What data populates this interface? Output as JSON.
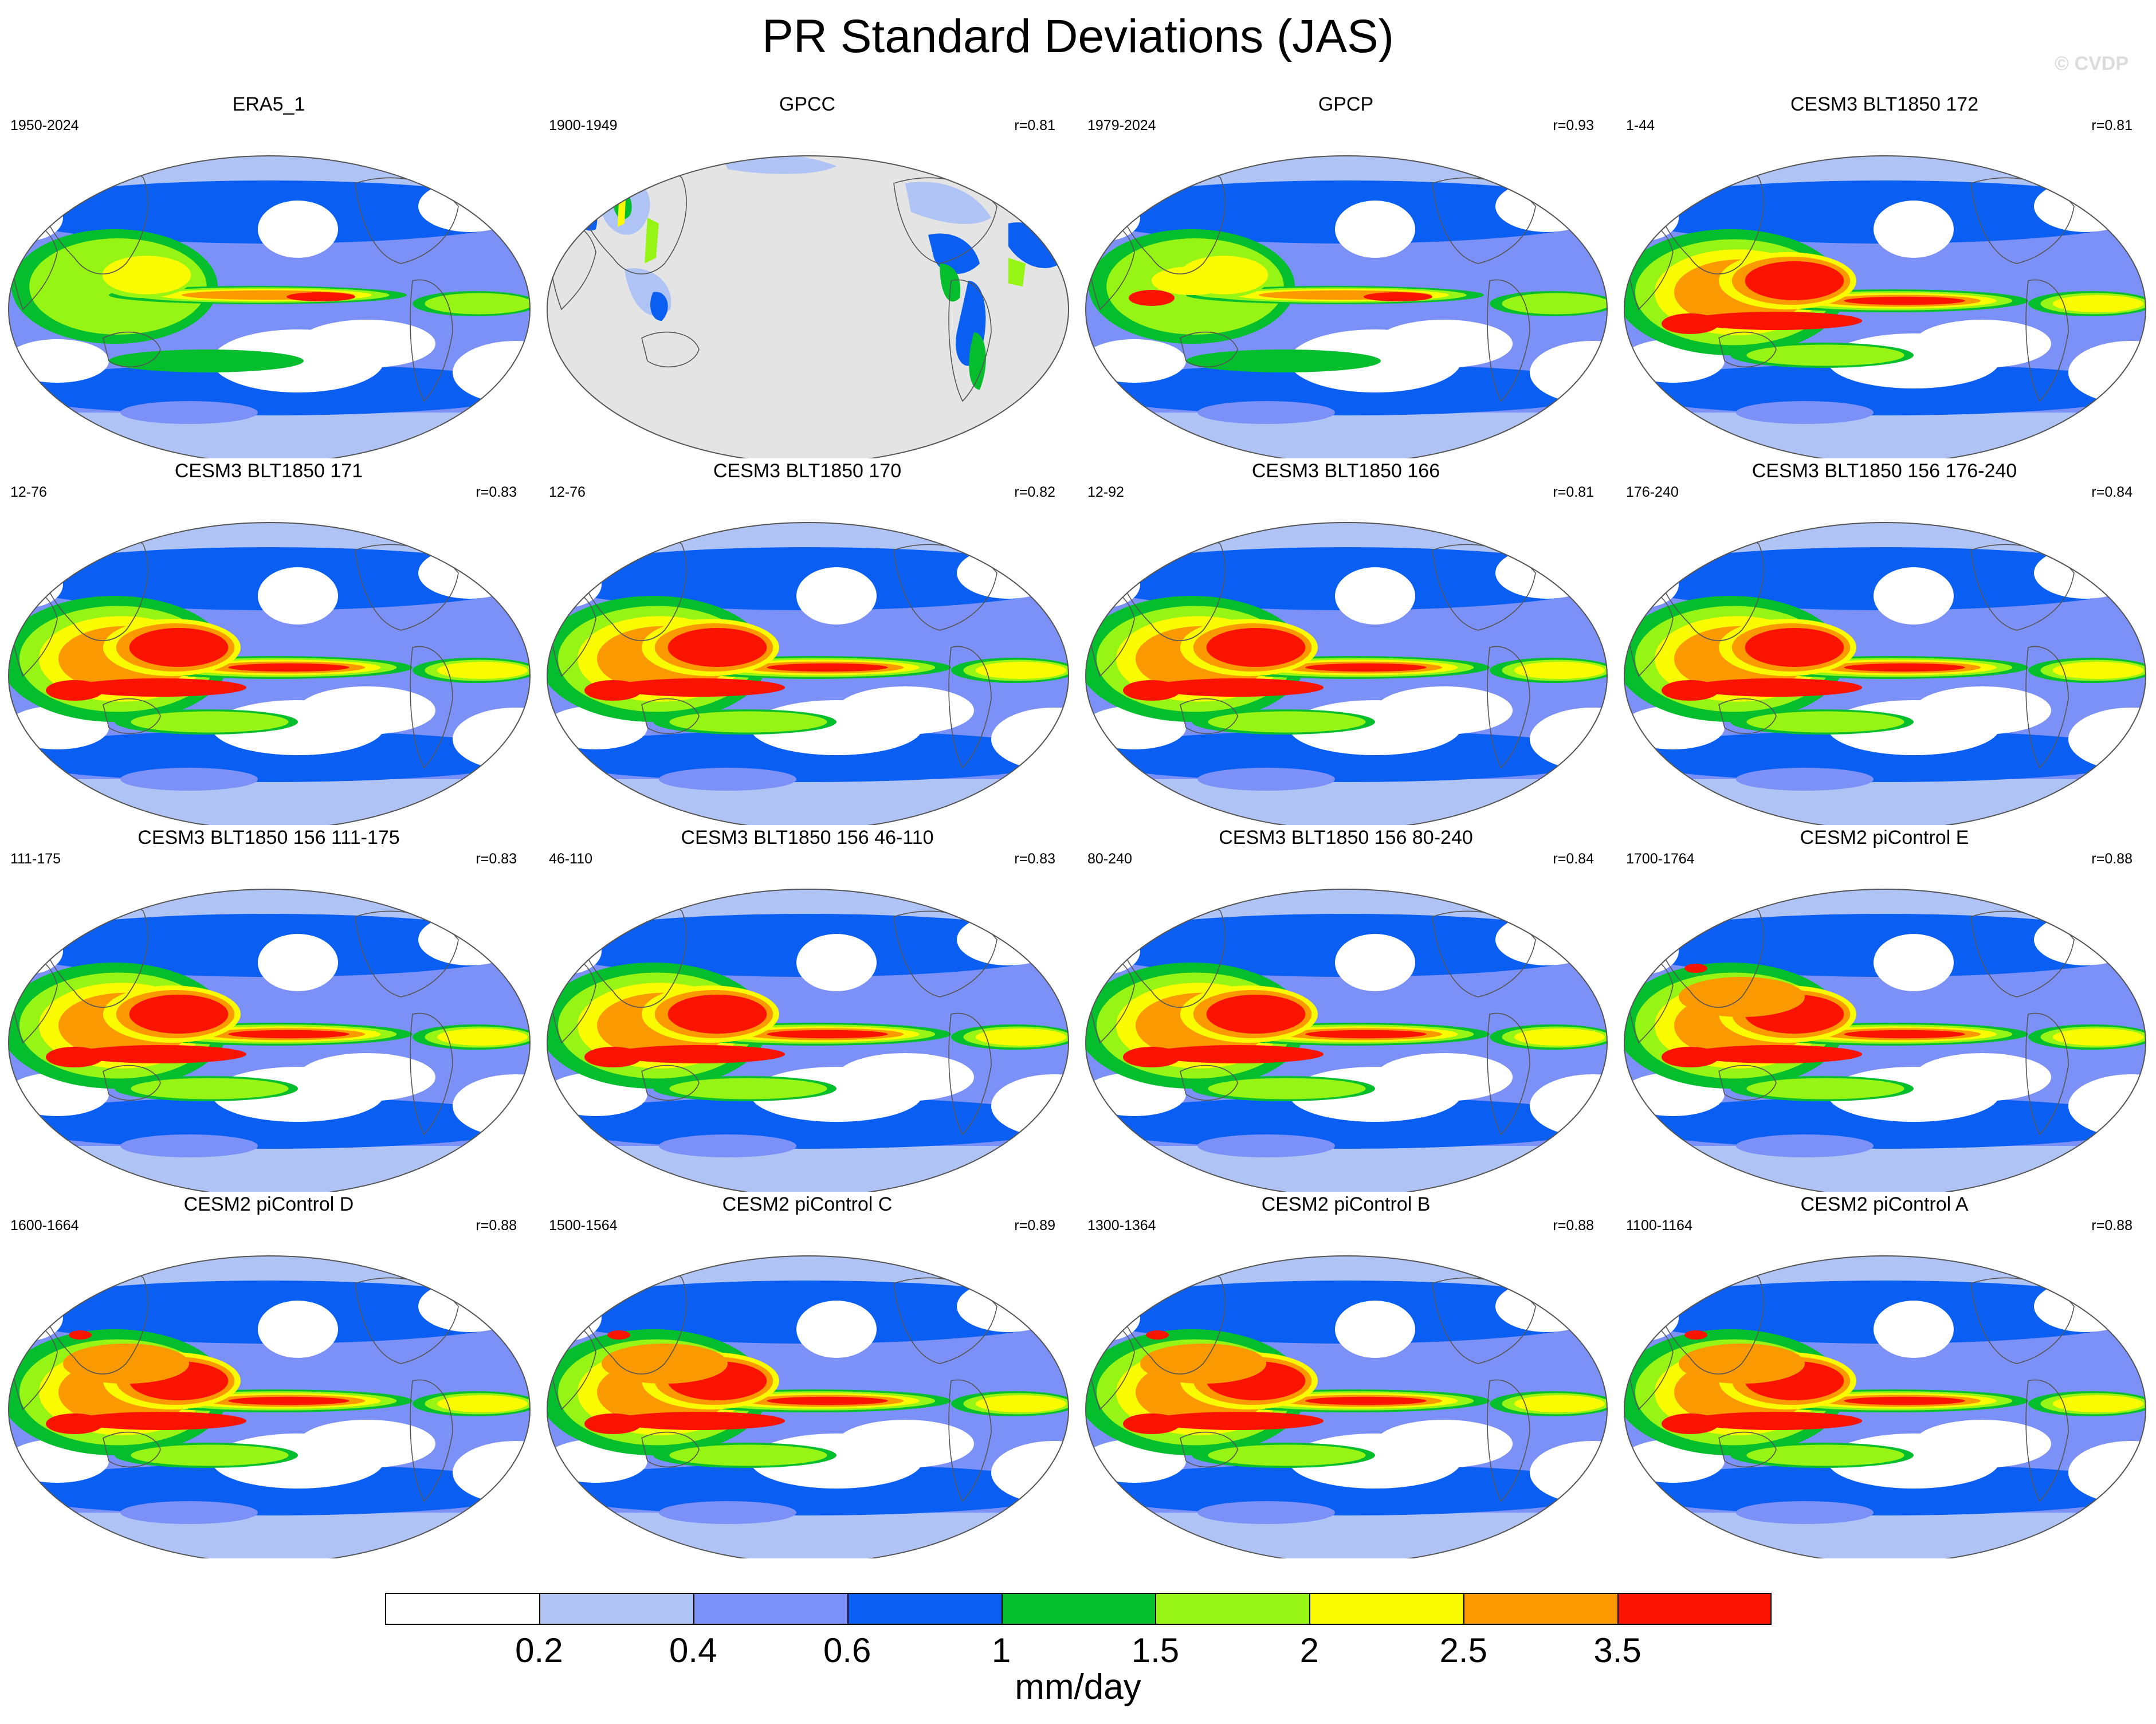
{
  "title": "PR Standard Deviations (JAS)",
  "watermark": "© CVDP",
  "units": "mm/day",
  "colorbar": {
    "colors": [
      "#ffffff",
      "#afc3f5",
      "#7c91f7",
      "#0a5ff2",
      "#05be2d",
      "#96f514",
      "#fafa00",
      "#fa9900",
      "#fa1400"
    ],
    "tick_labels": [
      "0.2",
      "0.4",
      "0.6",
      "1",
      "1.5",
      "2",
      "2.5",
      "3.5"
    ]
  },
  "map_style": {
    "ocean_bg": "#ffffff",
    "missing_bg": "#e4e4e4",
    "coast": "#555555"
  },
  "panels": [
    {
      "title": "ERA5_1",
      "years": "1950-2024",
      "r": "",
      "variant": "obs"
    },
    {
      "title": "GPCC",
      "years": "1900-1949",
      "r": "r=0.81",
      "variant": "gpcc"
    },
    {
      "title": "GPCP",
      "years": "1979-2024",
      "r": "r=0.93",
      "variant": "obs2"
    },
    {
      "title": "CESM3 BLT1850 172",
      "years": "1-44",
      "r": "r=0.81",
      "variant": "model"
    },
    {
      "title": "CESM3 BLT1850 171",
      "years": "12-76",
      "r": "r=0.83",
      "variant": "model"
    },
    {
      "title": "CESM3 BLT1850 170",
      "years": "12-76",
      "r": "r=0.82",
      "variant": "model"
    },
    {
      "title": "CESM3 BLT1850 166",
      "years": "12-92",
      "r": "r=0.81",
      "variant": "model"
    },
    {
      "title": "CESM3 BLT1850 156 176-240",
      "years": "176-240",
      "r": "r=0.84",
      "variant": "model"
    },
    {
      "title": "CESM3 BLT1850 156 111-175",
      "years": "111-175",
      "r": "r=0.83",
      "variant": "model"
    },
    {
      "title": "CESM3 BLT1850 156 46-110",
      "years": "46-110",
      "r": "r=0.83",
      "variant": "model"
    },
    {
      "title": "CESM3 BLT1850 156 80-240",
      "years": "80-240",
      "r": "r=0.84",
      "variant": "model"
    },
    {
      "title": "CESM2 piControl E",
      "years": "1700-1764",
      "r": "r=0.88",
      "variant": "cesm2"
    },
    {
      "title": "CESM2 piControl D",
      "years": "1600-1664",
      "r": "r=0.88",
      "variant": "cesm2"
    },
    {
      "title": "CESM2 piControl C",
      "years": "1500-1564",
      "r": "r=0.89",
      "variant": "cesm2"
    },
    {
      "title": "CESM2 piControl B",
      "years": "1300-1364",
      "r": "r=0.88",
      "variant": "cesm2"
    },
    {
      "title": "CESM2 piControl A",
      "years": "1100-1164",
      "r": "r=0.88",
      "variant": "cesm2"
    }
  ]
}
